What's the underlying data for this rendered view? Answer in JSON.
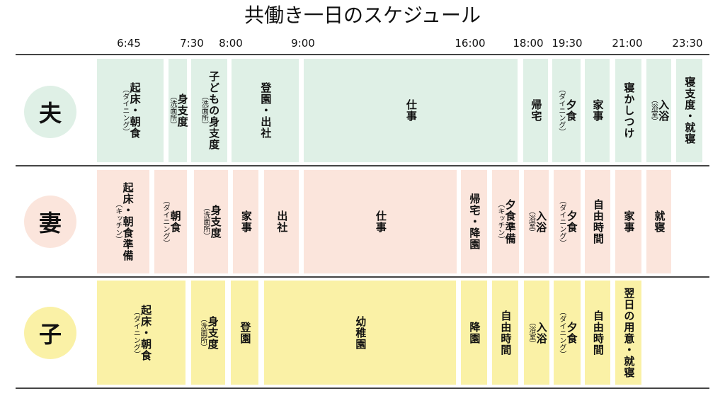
{
  "title": "共働き一日のスケジュール",
  "times": [
    "6:45",
    "7:30",
    "8:00",
    "9:00",
    "16:00",
    "18:00",
    "19:30",
    "21:00",
    "23:30"
  ],
  "people": [
    {
      "label": "夫",
      "color": "#dff0e6",
      "blocks": [
        {
          "lines": [
            "起床・朝食",
            "（ダイニング）"
          ]
        },
        {
          "lines": [
            "身支度",
            "（洗面所）"
          ]
        },
        {
          "lines": [
            "子どもの身支度",
            "（洗面所）"
          ]
        },
        {
          "lines": [
            "登園・出社"
          ]
        },
        {
          "lines": [
            "仕事"
          ]
        },
        {
          "lines": [
            "帰宅"
          ]
        },
        {
          "lines": [
            "夕食",
            "（ダイニング）"
          ]
        },
        {
          "lines": [
            "家事"
          ]
        },
        {
          "lines": [
            "寝かしつけ"
          ]
        },
        {
          "lines": [
            "入浴",
            "（浴室）"
          ]
        },
        {
          "lines": [
            "寝支度・就寝"
          ]
        }
      ]
    },
    {
      "label": "妻",
      "color": "#fbe5dc",
      "blocks": [
        {
          "lines": [
            "起床・朝食準備",
            "（キッチン）"
          ]
        },
        {
          "lines": [
            "朝食",
            "（ダイニング）"
          ]
        },
        {
          "lines": [
            "身支度",
            "（洗面所）"
          ]
        },
        {
          "lines": [
            "家事"
          ]
        },
        {
          "lines": [
            "出社"
          ]
        },
        {
          "lines": [
            "仕事"
          ]
        },
        {
          "lines": [
            "帰宅・降園"
          ]
        },
        {
          "lines": [
            "夕食準備",
            "（キッチン）"
          ]
        },
        {
          "lines": [
            "入浴",
            "（浴室）"
          ]
        },
        {
          "lines": [
            "夕食",
            "（ダイニング）"
          ]
        },
        {
          "lines": [
            "自由時間"
          ]
        },
        {
          "lines": [
            "家事"
          ]
        },
        {
          "lines": [
            "就寝"
          ]
        }
      ]
    },
    {
      "label": "子",
      "color": "#faf1a6",
      "blocks": [
        {
          "lines": [
            "起床・朝食",
            "（ダイニング）"
          ]
        },
        {
          "lines": [
            "身支度",
            "（洗面所）"
          ]
        },
        {
          "lines": [
            "登園"
          ]
        },
        {
          "lines": [
            "幼稚園"
          ]
        },
        {
          "lines": [
            "降園"
          ]
        },
        {
          "lines": [
            "自由時間"
          ]
        },
        {
          "lines": [
            "入浴",
            "（浴室）"
          ]
        },
        {
          "lines": [
            "夕食",
            "（ダイニング）"
          ]
        },
        {
          "lines": [
            "自由時間"
          ]
        },
        {
          "lines": [
            "翌日の用意・就寝"
          ]
        }
      ]
    }
  ]
}
